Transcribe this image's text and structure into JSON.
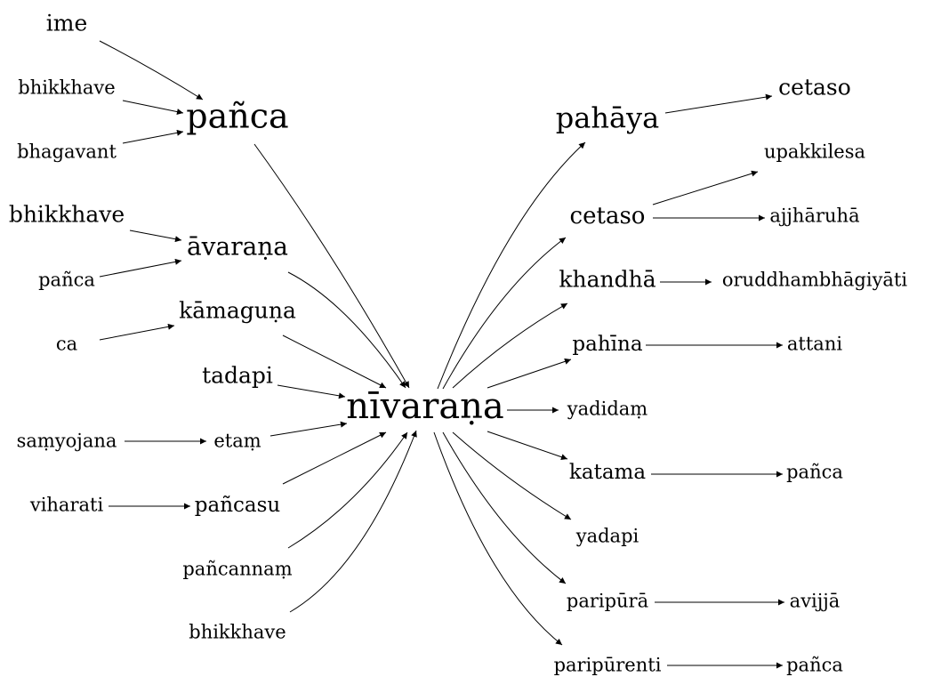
{
  "nodes": {
    "center": "nīvaraṇa",
    "ime": "ime",
    "bhikkhave_1": "bhikkhave",
    "bhagavant": "bhagavant",
    "panca_l": "pañca",
    "bhikkhave_2": "bhikkhave",
    "avarana": "āvaraṇa",
    "panca_2": "pañca",
    "ca": "ca",
    "kamaguna": "kāmaguṇa",
    "tadapi": "tadapi",
    "samyojana": "saṃyojana",
    "etam": "etaṃ",
    "viharati": "viharati",
    "pancasu": "pañcasu",
    "pancannam": "pañcannaṃ",
    "bhikkhave_3": "bhikkhave",
    "pahaya": "pahāya",
    "cetaso_1": "cetaso",
    "cetaso_2": "cetaso",
    "upakkilesa": "upakkilesa",
    "ajjharuha": "ajjhāruhā",
    "khandha": "khandhā",
    "oruddham": "oruddhambhāgiyāti",
    "pahina": "pahīna",
    "attani": "attani",
    "yadidam": "yadidaṃ",
    "katama": "katama",
    "panca_r1": "pañca",
    "yadapi": "yadapi",
    "paripura": "paripūrā",
    "avijja": "avijjā",
    "paripurenti": "paripūrenti",
    "panca_r2": "pañca"
  }
}
